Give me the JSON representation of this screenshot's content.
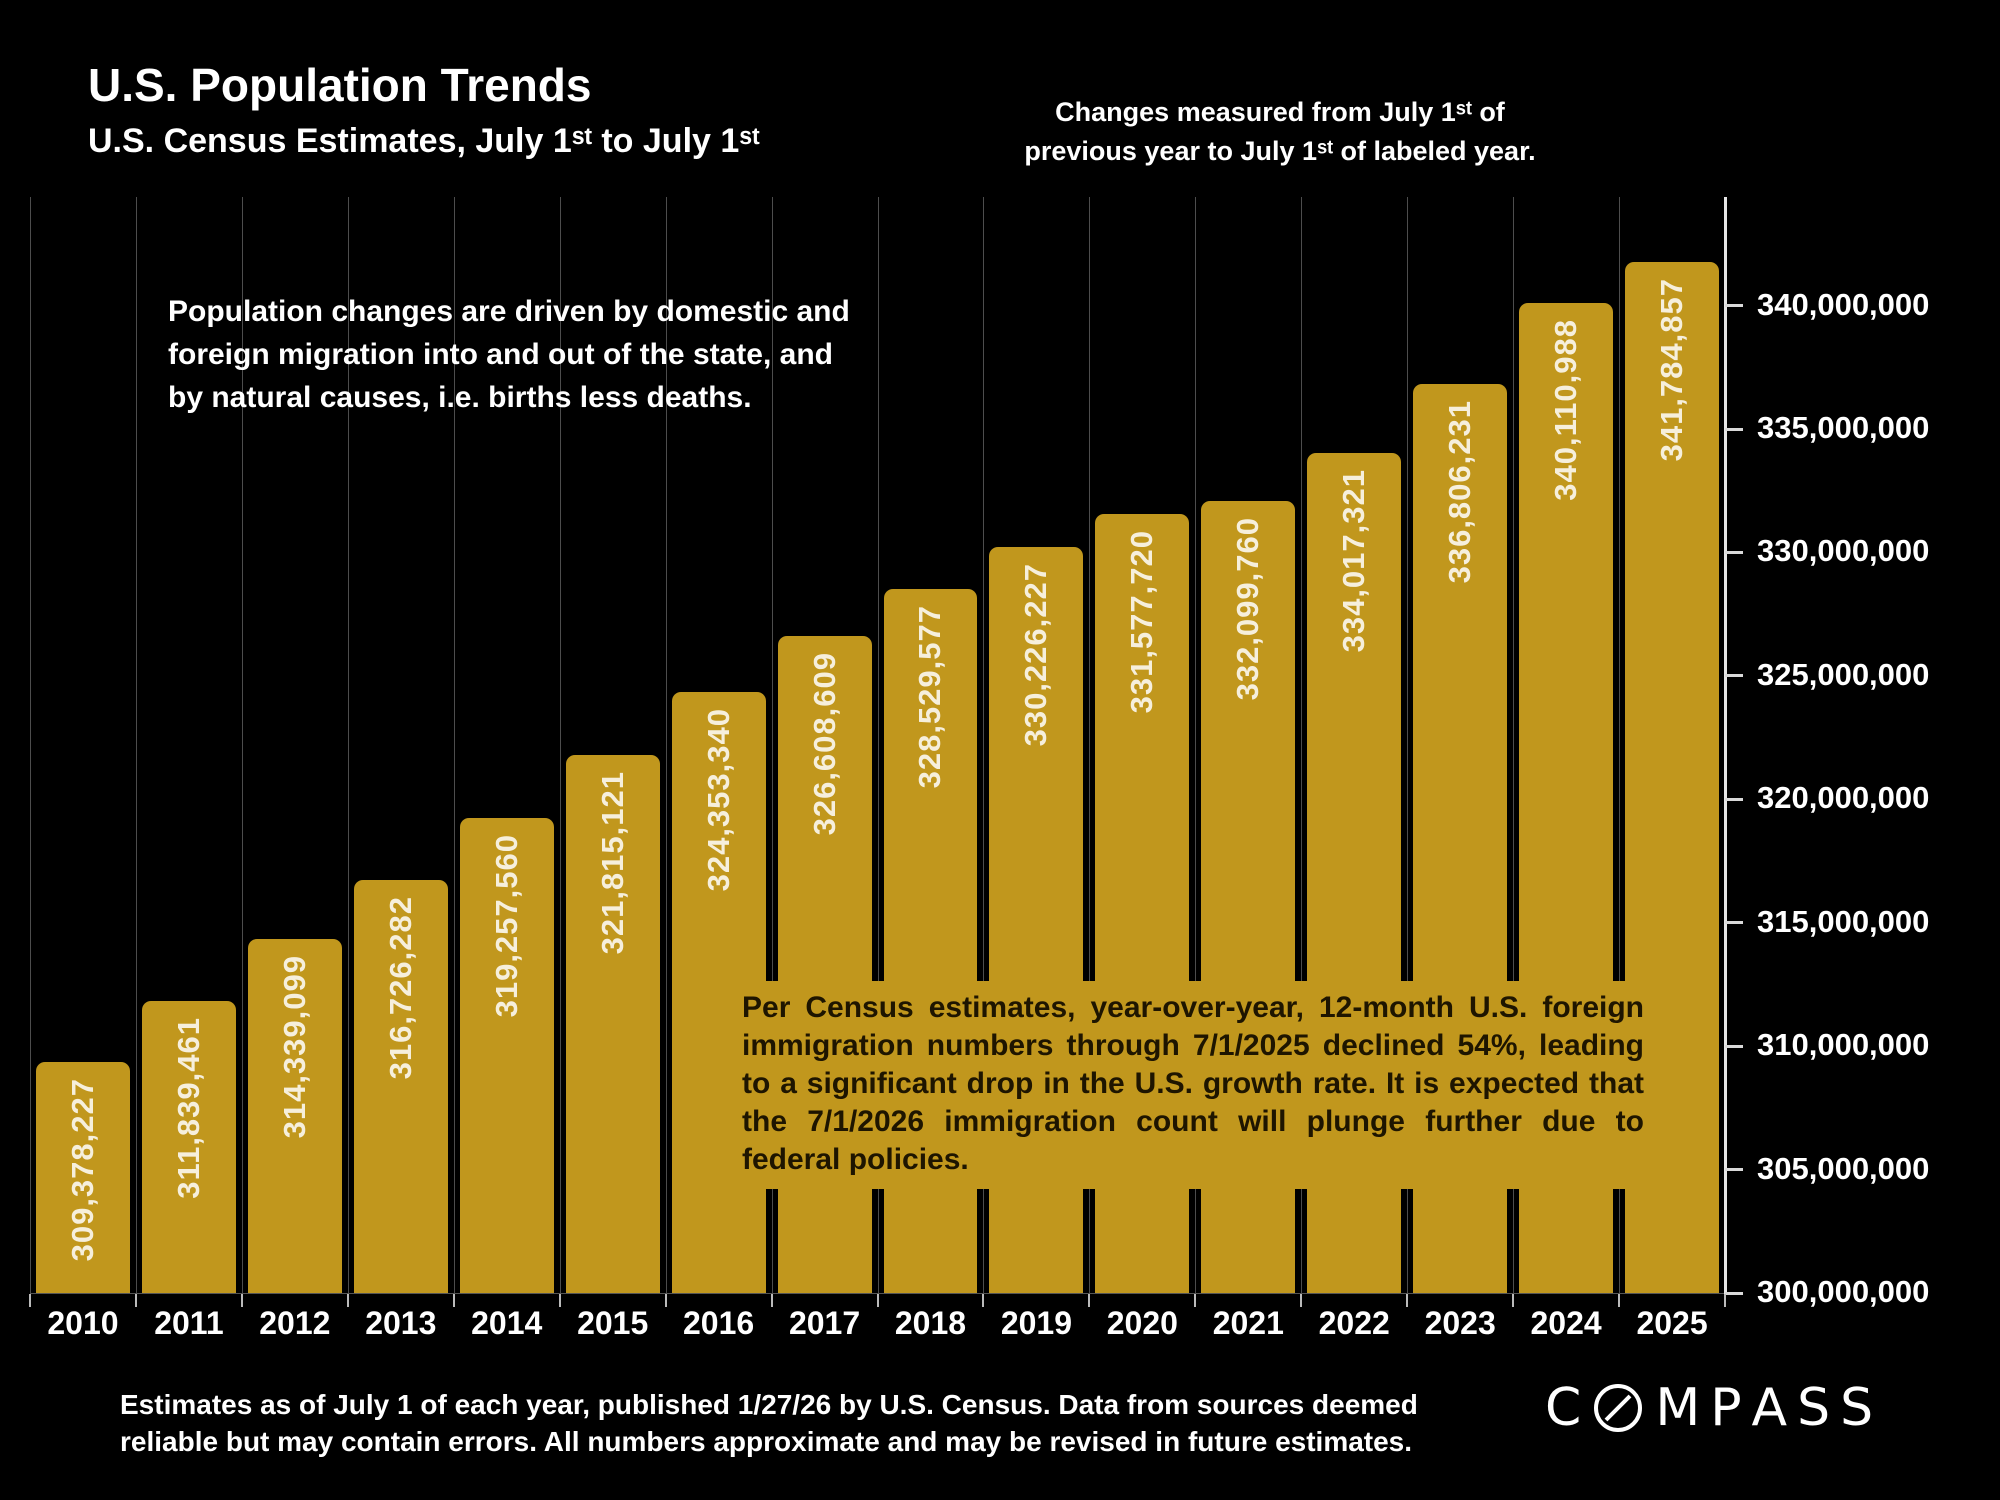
{
  "header": {
    "title": "U.S. Population Trends",
    "subtitle": "U.S. Census Estimates, July 1ˢᵗ to July 1ˢᵗ",
    "note_line1": "Changes measured from July 1ˢᵗ of",
    "note_line2": "previous year to July 1ˢᵗ of labeled year."
  },
  "chart_data": {
    "type": "bar",
    "title": "U.S. Population Trends",
    "subtitle": "U.S. Census Estimates, July 1st to July 1st",
    "categories": [
      "2010",
      "2011",
      "2012",
      "2013",
      "2014",
      "2015",
      "2016",
      "2017",
      "2018",
      "2019",
      "2020",
      "2021",
      "2022",
      "2023",
      "2024",
      "2025"
    ],
    "values": [
      309378227,
      311839461,
      314339099,
      316726282,
      319257560,
      321815121,
      324353340,
      326608609,
      328529577,
      330226227,
      331577720,
      332099760,
      334017321,
      336806231,
      340110988,
      341784857
    ],
    "xlabel": "",
    "ylabel": "",
    "ylim": [
      300000000,
      340000000
    ],
    "ytick_step": 5000000,
    "grid": "vertical",
    "legend": "none",
    "bar_labels_inside": true
  },
  "annotations": {
    "drivers_lines": [
      "Population changes are driven by domestic and",
      "foreign migration into and out of the state, and",
      "by natural causes, i.e. births less deaths."
    ],
    "immigration_text": "Per Census estimates, year-over-year, 12-month U.S. foreign immigration numbers through 7/1/2025 declined 54%, leading to a significant drop in the U.S. growth rate. It is expected that the 7/1/2026 immigration count will plunge further due to federal policies."
  },
  "footer": {
    "line1": "Estimates as of July 1 of each year, published 1/27/26 by U.S. Census. Data from sources deemed",
    "line2": "reliable but may contain errors. All numbers approximate and may be revised in future estimates."
  },
  "brand": {
    "name": "COMPASS"
  },
  "colors": {
    "background": "#000000",
    "bar": "#C1971D",
    "bar_label": "#F6EFDC",
    "dark_text": "#1E1500",
    "grid": "#4d4d4d",
    "axis": "#E6E6E6",
    "text": "#FFFFFF"
  }
}
